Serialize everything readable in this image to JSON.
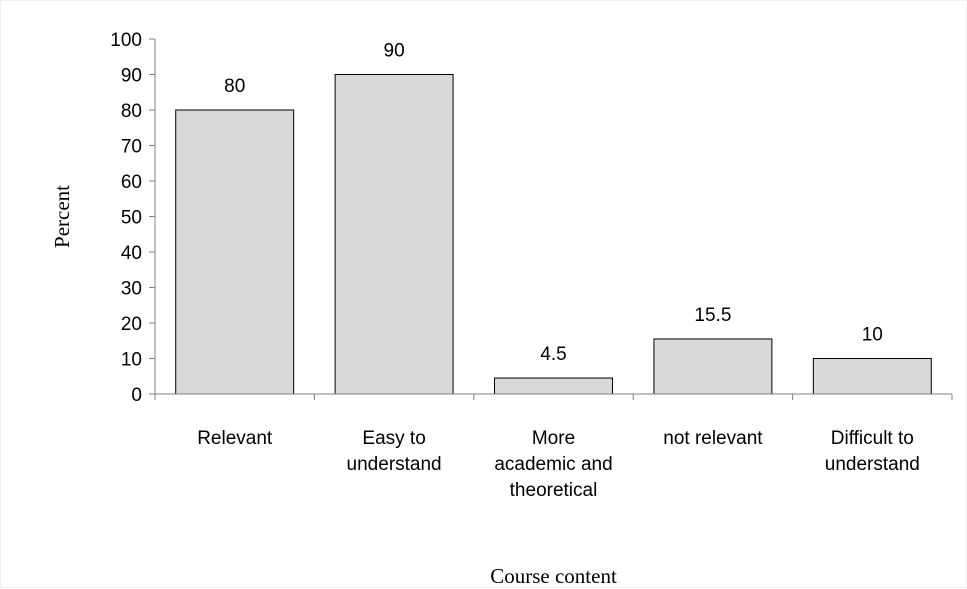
{
  "chart_data": {
    "type": "bar",
    "categories": [
      "Relevant",
      "Easy to understand",
      "More academic and theoretical",
      "not relevant",
      "Difficult to understand"
    ],
    "category_lines": [
      [
        "Relevant"
      ],
      [
        "Easy to",
        "understand"
      ],
      [
        "More",
        "academic and",
        "theoretical"
      ],
      [
        "not relevant"
      ],
      [
        "Difficult to",
        "understand"
      ]
    ],
    "values": [
      80,
      90,
      4.5,
      15.5,
      10
    ],
    "data_labels": [
      "80",
      "90",
      "4.5",
      "15.5",
      "10"
    ],
    "xlabel": "Course content",
    "ylabel": "Percent",
    "ylim": [
      0,
      100
    ],
    "yticks": [
      0,
      10,
      20,
      30,
      40,
      50,
      60,
      70,
      80,
      90,
      100
    ],
    "grid": false,
    "legend": "none",
    "bar_color": "#d9d9d9",
    "bar_edge_color": "#000000"
  }
}
